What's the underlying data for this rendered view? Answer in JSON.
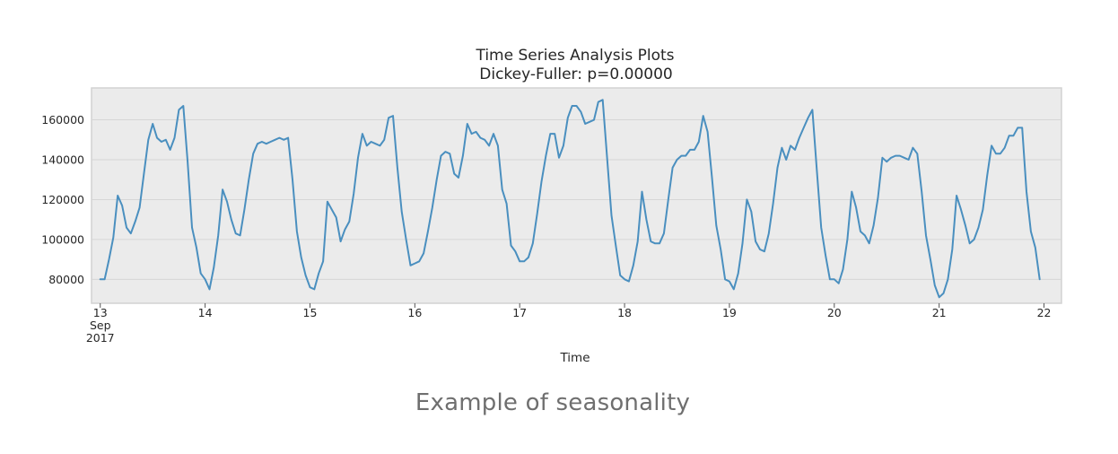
{
  "caption": "Example of seasonality",
  "chart_data": {
    "type": "line",
    "title": "Time Series Analysis Plots",
    "subtitle": "Dickey-Fuller: p=0.00000",
    "xlabel": "Time",
    "ylabel": "",
    "grid": true,
    "line_color": "#4a8fbf",
    "plot_background": "#ebebeb",
    "x_start": "2017-09-13 00:00",
    "x_interval": "hourly",
    "xlim": [
      "2017-09-12 22:00",
      "2017-09-22 04:00"
    ],
    "ylim": [
      68000,
      176000
    ],
    "y_ticks": [
      80000,
      100000,
      120000,
      140000,
      160000
    ],
    "y_tick_labels": [
      "80000",
      "100000",
      "120000",
      "140000",
      "160000"
    ],
    "x_ticks": [
      "2017-09-13",
      "2017-09-14",
      "2017-09-15",
      "2017-09-16",
      "2017-09-17",
      "2017-09-18",
      "2017-09-19",
      "2017-09-20",
      "2017-09-21",
      "2017-09-22"
    ],
    "x_tick_labels": [
      [
        "13",
        "Sep",
        "2017"
      ],
      [
        "14"
      ],
      [
        "15"
      ],
      [
        "16"
      ],
      [
        "17"
      ],
      [
        "18"
      ],
      [
        "19"
      ],
      [
        "20"
      ],
      [
        "21"
      ],
      [
        "22"
      ]
    ],
    "values": [
      80000,
      80000,
      90000,
      101000,
      122000,
      117000,
      106000,
      103000,
      109000,
      116000,
      133000,
      150000,
      158000,
      151000,
      149000,
      150000,
      145000,
      151000,
      165000,
      167000,
      139000,
      106000,
      96000,
      83000,
      80000,
      75000,
      86000,
      102000,
      125000,
      119000,
      110000,
      103000,
      102000,
      115000,
      130000,
      143000,
      148000,
      149000,
      148000,
      149000,
      150000,
      151000,
      150000,
      151000,
      130000,
      104000,
      91000,
      82000,
      76000,
      75000,
      83000,
      89000,
      119000,
      115000,
      111000,
      99000,
      105000,
      109000,
      123000,
      141000,
      153000,
      147000,
      149000,
      148000,
      147000,
      150000,
      161000,
      162000,
      136000,
      114000,
      100000,
      87000,
      88000,
      89000,
      93000,
      104000,
      116000,
      130000,
      142000,
      144000,
      143000,
      133000,
      131000,
      142000,
      158000,
      153000,
      154000,
      151000,
      150000,
      147000,
      153000,
      147000,
      125000,
      118000,
      97000,
      94000,
      89000,
      89000,
      91000,
      98000,
      113000,
      129000,
      142000,
      153000,
      153000,
      141000,
      147000,
      161000,
      167000,
      167000,
      164000,
      158000,
      159000,
      160000,
      169000,
      170000,
      141000,
      112000,
      97000,
      82000,
      80000,
      79000,
      87000,
      99000,
      124000,
      110000,
      99000,
      98000,
      98000,
      103000,
      120000,
      136000,
      140000,
      142000,
      142000,
      145000,
      145000,
      149000,
      162000,
      154000,
      131000,
      107000,
      95000,
      80000,
      79000,
      75000,
      83000,
      98000,
      120000,
      114000,
      99000,
      95000,
      94000,
      103000,
      118000,
      136000,
      146000,
      140000,
      147000,
      145000,
      151000,
      156000,
      161000,
      165000,
      135000,
      106000,
      92000,
      80000,
      80000,
      78000,
      85000,
      100000,
      124000,
      116000,
      104000,
      102000,
      98000,
      107000,
      121000,
      141000,
      139000,
      141000,
      142000,
      142000,
      141000,
      140000,
      146000,
      143000,
      124000,
      102000,
      90000,
      77000,
      71000,
      73000,
      80000,
      95000,
      122000,
      115000,
      107000,
      98000,
      100000,
      106000,
      115000,
      132000,
      147000,
      143000,
      143000,
      146000,
      152000,
      152000,
      156000,
      156000,
      124000,
      104000,
      96000,
      80000
    ]
  }
}
